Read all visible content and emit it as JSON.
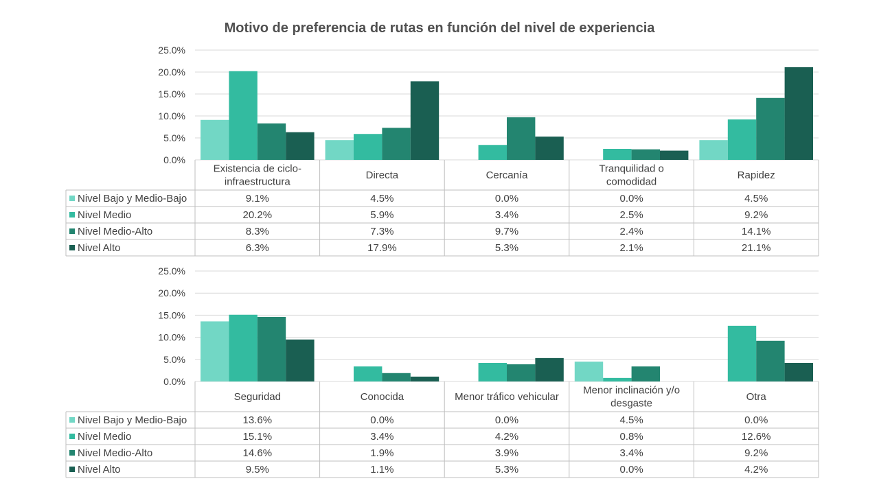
{
  "title": "Motivo de preferencia de rutas en función del nivel de experiencia",
  "colors": {
    "series": [
      "#72d7c5",
      "#33bba0",
      "#238570",
      "#1a5f52"
    ],
    "grid": "#d9d9d9",
    "table_border": "#bfbfbf",
    "text": "#404040"
  },
  "chart_data": [
    {
      "type": "bar",
      "ylim": [
        0,
        25
      ],
      "yticks": [
        "0.0%",
        "5.0%",
        "10.0%",
        "15.0%",
        "20.0%",
        "25.0%"
      ],
      "ytick_values": [
        0,
        5,
        10,
        15,
        20,
        25
      ],
      "grid": true,
      "legend": "data-table",
      "categories": [
        [
          "Existencia de ciclo-",
          "infraestructura"
        ],
        [
          "Directa"
        ],
        [
          "Cercanía"
        ],
        [
          "Tranquilidad o",
          "comodidad"
        ],
        [
          "Rapidez"
        ]
      ],
      "series": [
        {
          "name": "Nivel Bajo y Medio-Bajo",
          "values": [
            9.1,
            4.5,
            0.0,
            0.0,
            4.5
          ],
          "labels": [
            "9.1%",
            "4.5%",
            "0.0%",
            "0.0%",
            "4.5%"
          ]
        },
        {
          "name": "Nivel Medio",
          "values": [
            20.2,
            5.9,
            3.4,
            2.5,
            9.2
          ],
          "labels": [
            "20.2%",
            "5.9%",
            "3.4%",
            "2.5%",
            "9.2%"
          ]
        },
        {
          "name": "Nivel Medio-Alto",
          "values": [
            8.3,
            7.3,
            9.7,
            2.4,
            14.1
          ],
          "labels": [
            "8.3%",
            "7.3%",
            "9.7%",
            "2.4%",
            "14.1%"
          ]
        },
        {
          "name": "Nivel Alto",
          "values": [
            6.3,
            17.9,
            5.3,
            2.1,
            21.1
          ],
          "labels": [
            "6.3%",
            "17.9%",
            "5.3%",
            "2.1%",
            "21.1%"
          ]
        }
      ]
    },
    {
      "type": "bar",
      "ylim": [
        0,
        25
      ],
      "yticks": [
        "0.0%",
        "5.0%",
        "10.0%",
        "15.0%",
        "20.0%",
        "25.0%"
      ],
      "ytick_values": [
        0,
        5,
        10,
        15,
        20,
        25
      ],
      "grid": true,
      "legend": "data-table",
      "categories": [
        [
          "Seguridad"
        ],
        [
          "Conocida"
        ],
        [
          "Menor tráfico vehicular"
        ],
        [
          "Menor inclinación y/o",
          "desgaste"
        ],
        [
          "Otra"
        ]
      ],
      "series": [
        {
          "name": "Nivel Bajo y Medio-Bajo",
          "values": [
            13.6,
            0.0,
            0.0,
            4.5,
            0.0
          ],
          "labels": [
            "13.6%",
            "0.0%",
            "0.0%",
            "4.5%",
            "0.0%"
          ]
        },
        {
          "name": "Nivel Medio",
          "values": [
            15.1,
            3.4,
            4.2,
            0.8,
            12.6
          ],
          "labels": [
            "15.1%",
            "3.4%",
            "4.2%",
            "0.8%",
            "12.6%"
          ]
        },
        {
          "name": "Nivel Medio-Alto",
          "values": [
            14.6,
            1.9,
            3.9,
            3.4,
            9.2
          ],
          "labels": [
            "14.6%",
            "1.9%",
            "3.9%",
            "3.4%",
            "9.2%"
          ]
        },
        {
          "name": "Nivel Alto",
          "values": [
            9.5,
            1.1,
            5.3,
            0.0,
            4.2
          ],
          "labels": [
            "9.5%",
            "1.1%",
            "5.3%",
            "0.0%",
            "4.2%"
          ]
        }
      ]
    }
  ]
}
